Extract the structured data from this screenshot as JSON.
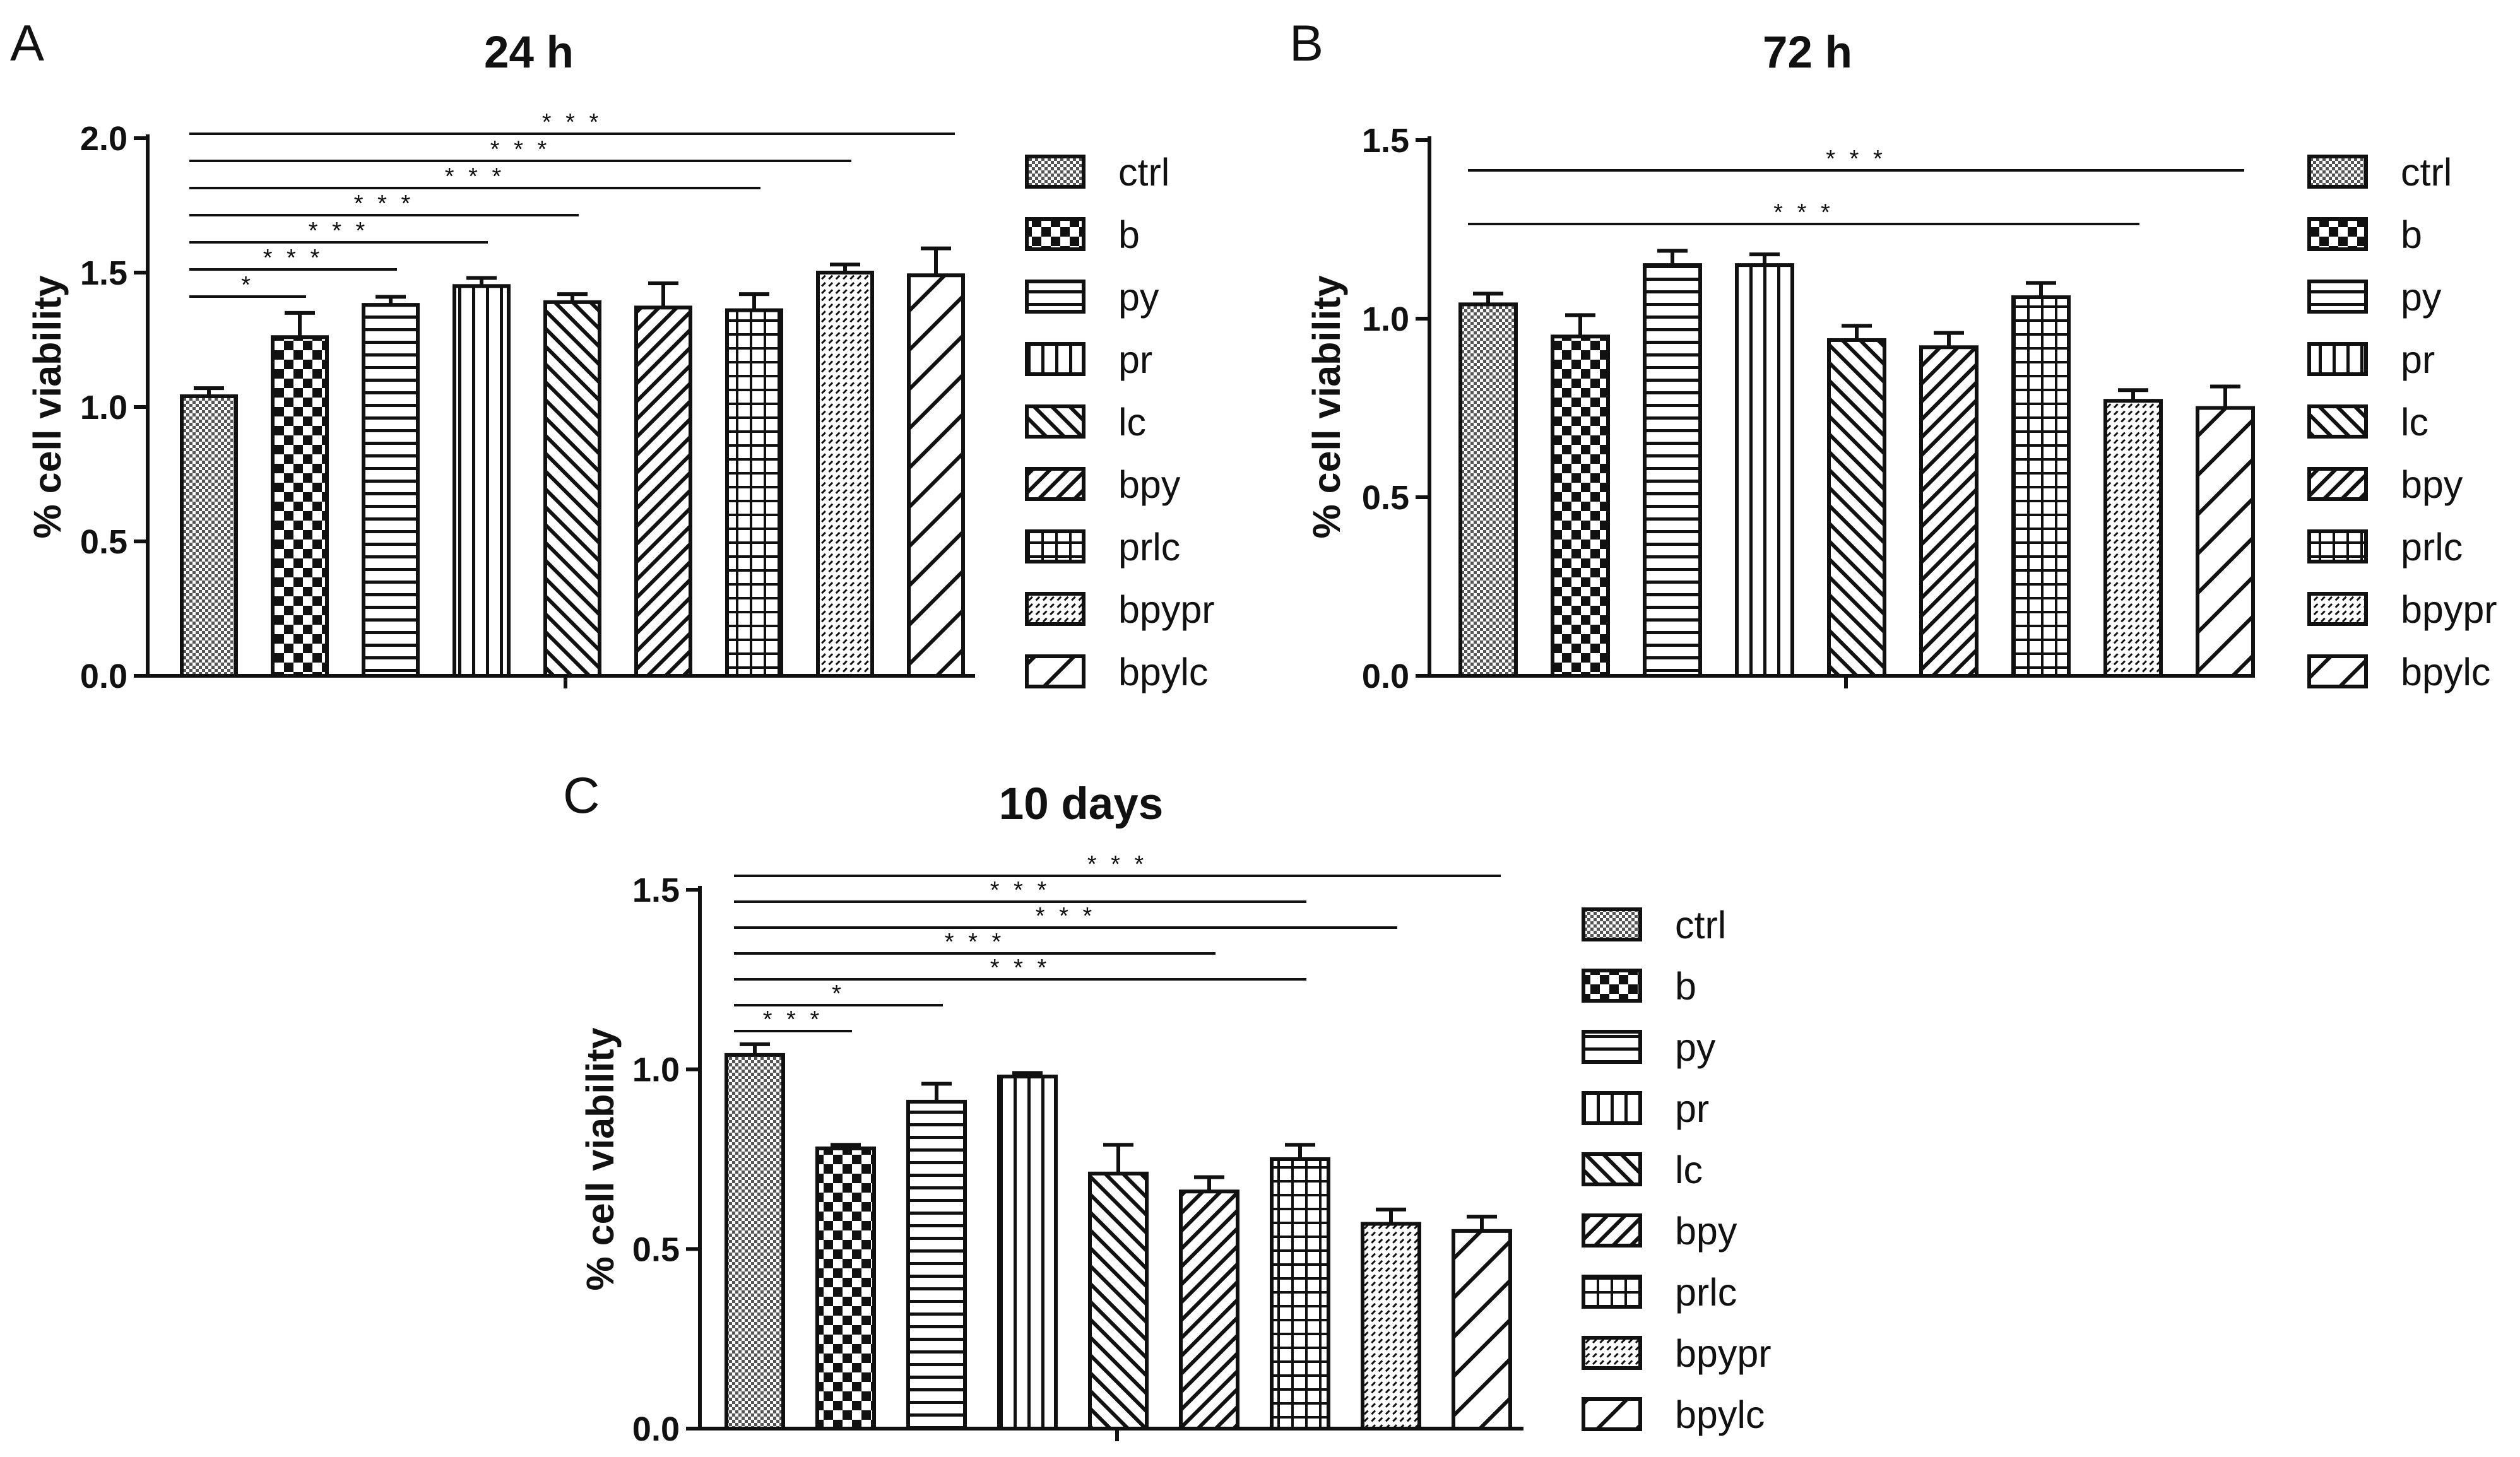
{
  "colors": {
    "ink": "#111111",
    "background": "#ffffff"
  },
  "legend": {
    "items": [
      {
        "key": "ctrl",
        "label": "ctrl",
        "pattern": "pat-ctrl"
      },
      {
        "key": "b",
        "label": "b",
        "pattern": "pat-b"
      },
      {
        "key": "py",
        "label": "py",
        "pattern": "pat-py"
      },
      {
        "key": "pr",
        "label": "pr",
        "pattern": "pat-pr"
      },
      {
        "key": "lc",
        "label": "lc",
        "pattern": "pat-lc"
      },
      {
        "key": "bpy",
        "label": "bpy",
        "pattern": "pat-bpy"
      },
      {
        "key": "prlc",
        "label": "prlc",
        "pattern": "pat-prlc"
      },
      {
        "key": "bpypr",
        "label": "bpypr",
        "pattern": "pat-bpypr"
      },
      {
        "key": "bpylc",
        "label": "bpylc",
        "pattern": "pat-bpylc"
      }
    ]
  },
  "chart_data": [
    {
      "panel": "A",
      "type": "bar",
      "title": "24 h",
      "ylabel": "% cell viability",
      "ylim": [
        0,
        2.0
      ],
      "yticks": [
        "0.0",
        "0.5",
        "1.0",
        "1.5",
        "2.0"
      ],
      "categories": [
        "ctrl",
        "b",
        "py",
        "pr",
        "lc",
        "bpy",
        "prlc",
        "bpypr",
        "bpylc"
      ],
      "values": [
        1.04,
        1.26,
        1.38,
        1.45,
        1.39,
        1.37,
        1.36,
        1.5,
        1.49
      ],
      "errors": [
        0.03,
        0.09,
        0.03,
        0.03,
        0.03,
        0.09,
        0.06,
        0.03,
        0.1
      ],
      "significance": [
        {
          "from": "ctrl",
          "to": "b",
          "label": "*"
        },
        {
          "from": "ctrl",
          "to": "py",
          "label": "* * *"
        },
        {
          "from": "ctrl",
          "to": "pr",
          "label": "* * *"
        },
        {
          "from": "ctrl",
          "to": "lc",
          "label": "* * *"
        },
        {
          "from": "ctrl",
          "to": "prlc",
          "label": "* * *"
        },
        {
          "from": "ctrl",
          "to": "bpypr",
          "label": "* * *"
        },
        {
          "from": "ctrl",
          "to": "bpylc",
          "label": "* * *"
        }
      ]
    },
    {
      "panel": "B",
      "type": "bar",
      "title": "72 h",
      "ylabel": "% cell viability",
      "ylim": [
        0,
        1.5
      ],
      "yticks": [
        "0.0",
        "0.5",
        "1.0",
        "1.5"
      ],
      "categories": [
        "ctrl",
        "b",
        "py",
        "pr",
        "lc",
        "bpy",
        "prlc",
        "bpypr",
        "bpylc"
      ],
      "values": [
        1.04,
        0.95,
        1.15,
        1.15,
        0.94,
        0.92,
        1.06,
        0.77,
        0.75
      ],
      "errors": [
        0.03,
        0.06,
        0.04,
        0.03,
        0.04,
        0.04,
        0.04,
        0.03,
        0.06
      ],
      "significance": [
        {
          "from": "ctrl",
          "to": "bpypr",
          "label": "* * *"
        },
        {
          "from": "ctrl",
          "to": "bpylc",
          "label": "* * *"
        }
      ]
    },
    {
      "panel": "C",
      "type": "bar",
      "title": "10 days",
      "ylabel": "% cell viability",
      "ylim": [
        0,
        1.5
      ],
      "yticks": [
        "0.0",
        "0.5",
        "1.0",
        "1.5"
      ],
      "categories": [
        "ctrl",
        "b",
        "py",
        "pr",
        "lc",
        "bpy",
        "prlc",
        "bpypr",
        "bpylc"
      ],
      "values": [
        1.04,
        0.78,
        0.91,
        0.98,
        0.71,
        0.66,
        0.75,
        0.57,
        0.55
      ],
      "errors": [
        0.03,
        0.01,
        0.05,
        0.01,
        0.08,
        0.04,
        0.04,
        0.04,
        0.04
      ],
      "significance": [
        {
          "from": "ctrl",
          "to": "b",
          "label": "* * *"
        },
        {
          "from": "ctrl",
          "to": "py",
          "label": "*"
        },
        {
          "from": "ctrl",
          "to": "prlc",
          "label": "* * *"
        },
        {
          "from": "ctrl",
          "to": "bpy",
          "label": "* * *"
        },
        {
          "from": "ctrl",
          "to": "bpypr",
          "label": "* * *"
        },
        {
          "from": "ctrl",
          "to": "prlc",
          "label": "* * *"
        },
        {
          "from": "ctrl",
          "to": "bpylc",
          "label": "* * *"
        }
      ]
    }
  ]
}
